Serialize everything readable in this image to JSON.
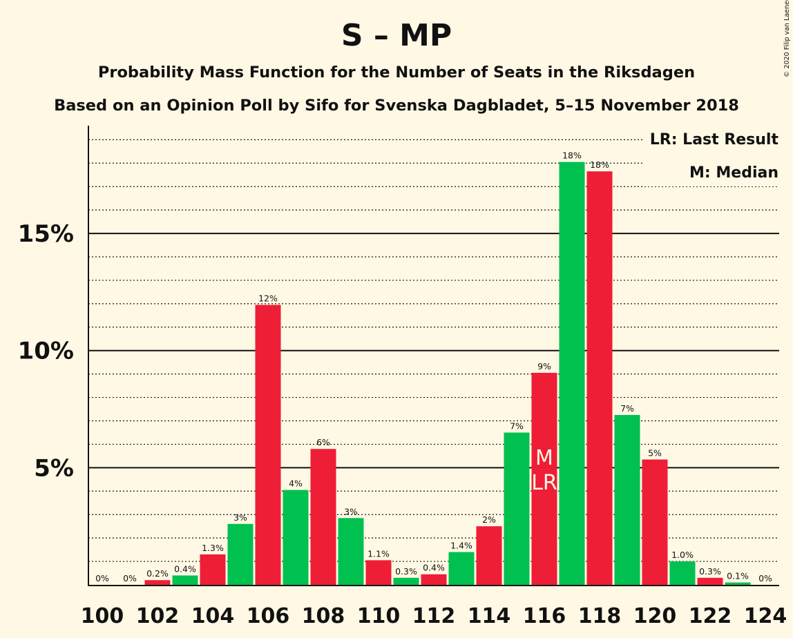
{
  "copyright": "© 2020 Filip van Laenen",
  "colors": {
    "green": "#00c050",
    "red": "#ee1e36",
    "background": "#fff8e4",
    "text": "#111111"
  },
  "chart_data": {
    "type": "bar",
    "title": "S – MP",
    "subtitle": "Probability Mass Function for the Number of Seats in the Riksdagen",
    "subtitle2": "Based on an Opinion Poll by Sifo for Svenska Dagbladet, 5–15 November 2018",
    "legend": {
      "lr": "LR: Last Result",
      "m": "M: Median",
      "placement": "top-right"
    },
    "markers": {
      "median_seat": 116,
      "last_result_seat": 116,
      "median_text": "M",
      "lr_text": "LR"
    },
    "ylim": [
      0,
      19.6
    ],
    "yticks": [
      5,
      10,
      15
    ],
    "ytick_labels": [
      "5%",
      "10%",
      "15%"
    ],
    "xtick_labels": [
      "100",
      "102",
      "104",
      "106",
      "108",
      "110",
      "112",
      "114",
      "116",
      "118",
      "120",
      "122",
      "124"
    ],
    "grid": "dotted minor every 1%, solid major every 5%",
    "seats": [
      100,
      101,
      102,
      103,
      104,
      105,
      106,
      107,
      108,
      109,
      110,
      111,
      112,
      113,
      114,
      115,
      116,
      117,
      118,
      119,
      120,
      121,
      122,
      123,
      124
    ],
    "values": [
      0,
      0,
      0.2,
      0.4,
      1.3,
      2.6,
      11.95,
      4.05,
      5.8,
      2.85,
      1.05,
      0.3,
      0.45,
      1.4,
      2.5,
      6.5,
      9.05,
      18.05,
      17.65,
      7.25,
      5.35,
      1.0,
      0.3,
      0.1,
      0
    ],
    "labels": [
      "0%",
      "0%",
      "0.2%",
      "0.4%",
      "1.3%",
      "3%",
      "12%",
      "4%",
      "6%",
      "3%",
      "1.1%",
      "0.3%",
      "0.4%",
      "1.4%",
      "2%",
      "7%",
      "9%",
      "18%",
      "18%",
      "7%",
      "5%",
      "1.0%",
      "0.3%",
      "0.1%",
      "0%"
    ]
  }
}
